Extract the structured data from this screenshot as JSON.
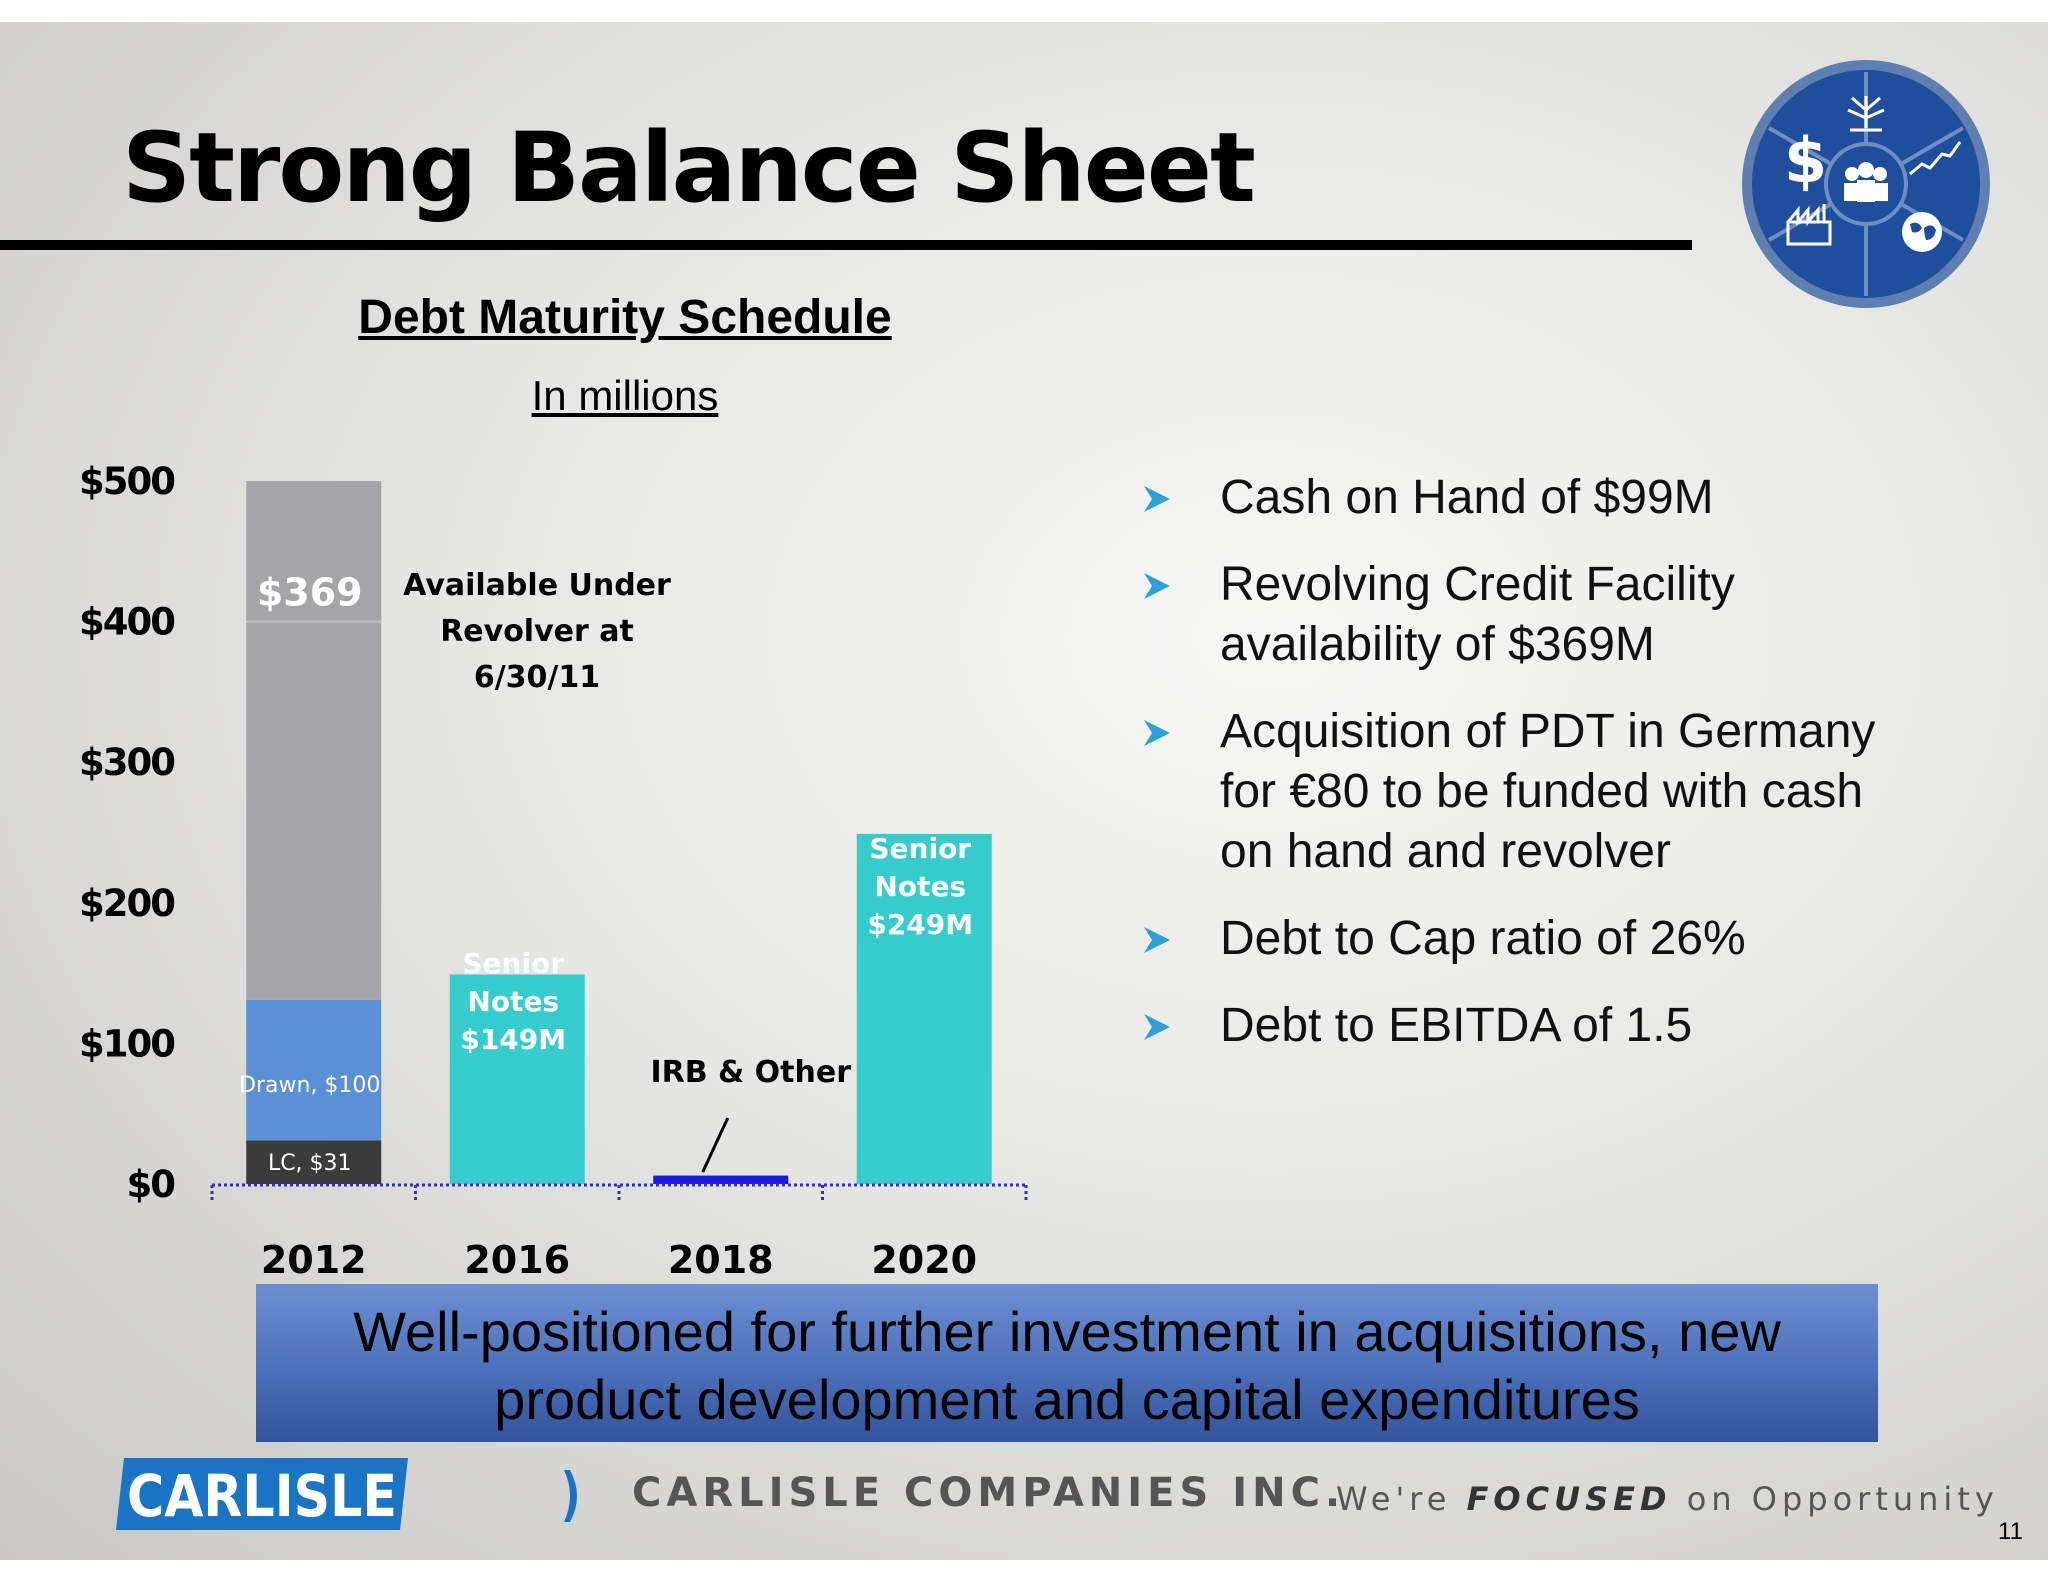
{
  "slide": {
    "title": "Strong Balance Sheet",
    "page_number": "11"
  },
  "emblem": {
    "icons": [
      "dollar-icon",
      "tree-icon",
      "growth-chart-icon",
      "globe-icon",
      "factory-icon",
      "people-icon"
    ],
    "colors": {
      "ring": "#1f4f9c",
      "rim": "#5f7fb0",
      "glyph": "#ffffff"
    }
  },
  "chart_data": {
    "type": "bar",
    "title": "Debt Maturity Schedule",
    "subtitle": "In millions",
    "categories": [
      "2012",
      "2016",
      "2018",
      "2020"
    ],
    "ylim": [
      0,
      500
    ],
    "yticks": [
      "$0",
      "$100",
      "$200",
      "$300",
      "$400",
      "$500"
    ],
    "ytick_values": [
      0,
      100,
      200,
      300,
      400,
      500
    ],
    "grid": false,
    "legend": "none",
    "stacks": [
      {
        "category": "2012",
        "segments": [
          {
            "value": 31,
            "label": "LC, $31",
            "color": "#3b3b3b"
          },
          {
            "value": 100,
            "label": "Drawn, $100",
            "color": "#5b8fd6"
          },
          {
            "value": 369,
            "label": "$369",
            "color": "#a5a5a7"
          }
        ]
      },
      {
        "category": "2016",
        "segments": [
          {
            "value": 149,
            "label": [
              "Senior",
              "Notes",
              "$149M"
            ],
            "color": "#36cccc"
          }
        ]
      },
      {
        "category": "2018",
        "segments": [
          {
            "value": 6,
            "label": "",
            "color": "#1a1ae6"
          }
        ]
      },
      {
        "category": "2020",
        "segments": [
          {
            "value": 249,
            "label": [
              "Senior",
              "Notes",
              "$249M"
            ],
            "color": "#36cccc"
          }
        ]
      }
    ],
    "annotations": [
      {
        "category": "2012",
        "text": [
          "Available Under",
          "Revolver at",
          "6/30/11"
        ]
      },
      {
        "category": "2018",
        "text": [
          "IRB & Other"
        ]
      }
    ]
  },
  "bullets": [
    {
      "lines": [
        "Cash on Hand of $99M"
      ]
    },
    {
      "lines": [
        "Revolving Credit Facility",
        "availability of $369M"
      ]
    },
    {
      "lines": [
        "Acquisition of PDT in Germany",
        "for €80 to be funded with cash",
        "on hand and revolver"
      ]
    },
    {
      "lines": [
        "Debt to Cap ratio of 26%"
      ]
    },
    {
      "lines": [
        "Debt to EBITDA of 1.5"
      ]
    }
  ],
  "banner": {
    "lines": [
      "Well-positioned for further investment in acquisitions, new",
      "product development and capital expenditures"
    ]
  },
  "footer": {
    "logo_text": "CARLISLE",
    "company": "CARLISLE COMPANIES INC.",
    "tagline": {
      "before": "We're",
      "emphasis": "FOCUSED",
      "after": "on Opportunity"
    }
  },
  "colors": {
    "accent_blue": "#1b73c4",
    "bullet_arrow": "#2f9fd8",
    "teal": "#36cccc"
  }
}
